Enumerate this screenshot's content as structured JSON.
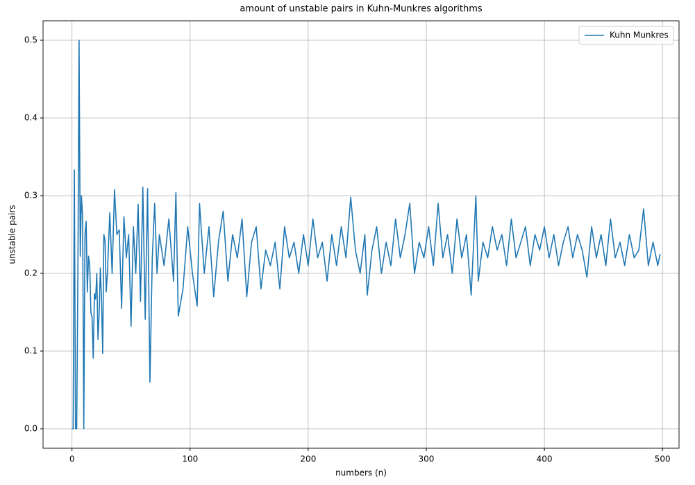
{
  "chart_data": {
    "type": "line",
    "title": "amount of unstable pairs in Kuhn-Munkres algorithms",
    "xlabel": "numbers (n)",
    "ylabel": "unstable pairs",
    "x": [
      0,
      1,
      2,
      3,
      4,
      5,
      6,
      7,
      8,
      9,
      10,
      11,
      12,
      13,
      14,
      15,
      16,
      17,
      18,
      19,
      20,
      21,
      22,
      23,
      24,
      25,
      26,
      27,
      28,
      29,
      30,
      32,
      34,
      36,
      38,
      40,
      42,
      44,
      46,
      48,
      50,
      52,
      54,
      56,
      58,
      60,
      62,
      64,
      66,
      68,
      70,
      72,
      74,
      78,
      82,
      86,
      88,
      90,
      94,
      98,
      102,
      106,
      108,
      112,
      116,
      120,
      124,
      128,
      132,
      136,
      140,
      144,
      148,
      152,
      156,
      160,
      164,
      168,
      172,
      176,
      180,
      184,
      188,
      192,
      196,
      200,
      204,
      208,
      212,
      216,
      220,
      224,
      228,
      232,
      236,
      240,
      244,
      248,
      250,
      254,
      258,
      262,
      266,
      270,
      274,
      278,
      282,
      286,
      290,
      294,
      298,
      302,
      306,
      310,
      314,
      318,
      322,
      326,
      330,
      334,
      338,
      342,
      344,
      348,
      352,
      356,
      360,
      364,
      368,
      372,
      376,
      380,
      384,
      388,
      392,
      396,
      400,
      404,
      408,
      412,
      416,
      420,
      424,
      428,
      432,
      436,
      440,
      444,
      448,
      452,
      456,
      460,
      464,
      468,
      472,
      476,
      480,
      484,
      488,
      492,
      496,
      498
    ],
    "series": [
      {
        "name": "Kuhn Munkres",
        "color": "#1f77b4",
        "values": [
          0,
          0,
          0.333,
          0,
          0,
          0.2,
          0.5,
          0.222,
          0.3,
          0.273,
          0,
          0.25,
          0.267,
          0.176,
          0.222,
          0.211,
          0.15,
          0.143,
          0.091,
          0.174,
          0.167,
          0.2,
          0.115,
          0.148,
          0.207,
          0.167,
          0.097,
          0.25,
          0.242,
          0.176,
          0.2,
          0.278,
          0.2,
          0.308,
          0.25,
          0.256,
          0.155,
          0.273,
          0.22,
          0.25,
          0.132,
          0.26,
          0.2,
          0.289,
          0.164,
          0.311,
          0.141,
          0.309,
          0.06,
          0.22,
          0.29,
          0.2,
          0.25,
          0.21,
          0.27,
          0.19,
          0.304,
          0.145,
          0.18,
          0.26,
          0.2,
          0.158,
          0.29,
          0.2,
          0.26,
          0.17,
          0.24,
          0.28,
          0.19,
          0.25,
          0.22,
          0.27,
          0.17,
          0.24,
          0.26,
          0.18,
          0.23,
          0.21,
          0.24,
          0.18,
          0.26,
          0.22,
          0.24,
          0.2,
          0.25,
          0.21,
          0.27,
          0.22,
          0.24,
          0.19,
          0.25,
          0.21,
          0.26,
          0.22,
          0.298,
          0.23,
          0.2,
          0.25,
          0.172,
          0.23,
          0.26,
          0.2,
          0.24,
          0.21,
          0.27,
          0.22,
          0.25,
          0.29,
          0.2,
          0.24,
          0.22,
          0.26,
          0.21,
          0.29,
          0.22,
          0.25,
          0.2,
          0.27,
          0.22,
          0.25,
          0.172,
          0.3,
          0.19,
          0.24,
          0.22,
          0.26,
          0.23,
          0.25,
          0.21,
          0.27,
          0.22,
          0.24,
          0.26,
          0.21,
          0.25,
          0.23,
          0.26,
          0.22,
          0.25,
          0.21,
          0.24,
          0.26,
          0.22,
          0.25,
          0.23,
          0.195,
          0.26,
          0.22,
          0.25,
          0.21,
          0.27,
          0.22,
          0.24,
          0.21,
          0.25,
          0.22,
          0.23,
          0.283,
          0.21,
          0.24,
          0.21,
          0.225
        ]
      }
    ],
    "xlim": [
      -24.5,
      514
    ],
    "ylim": [
      -0.025,
      0.525
    ],
    "xticks": [
      0,
      100,
      200,
      300,
      400,
      500
    ],
    "yticks": [
      {
        "value": 0,
        "label": "0.0"
      },
      0.1,
      0.2,
      0.3,
      0.4,
      0.5
    ],
    "grid": true,
    "legend": "upper right"
  }
}
